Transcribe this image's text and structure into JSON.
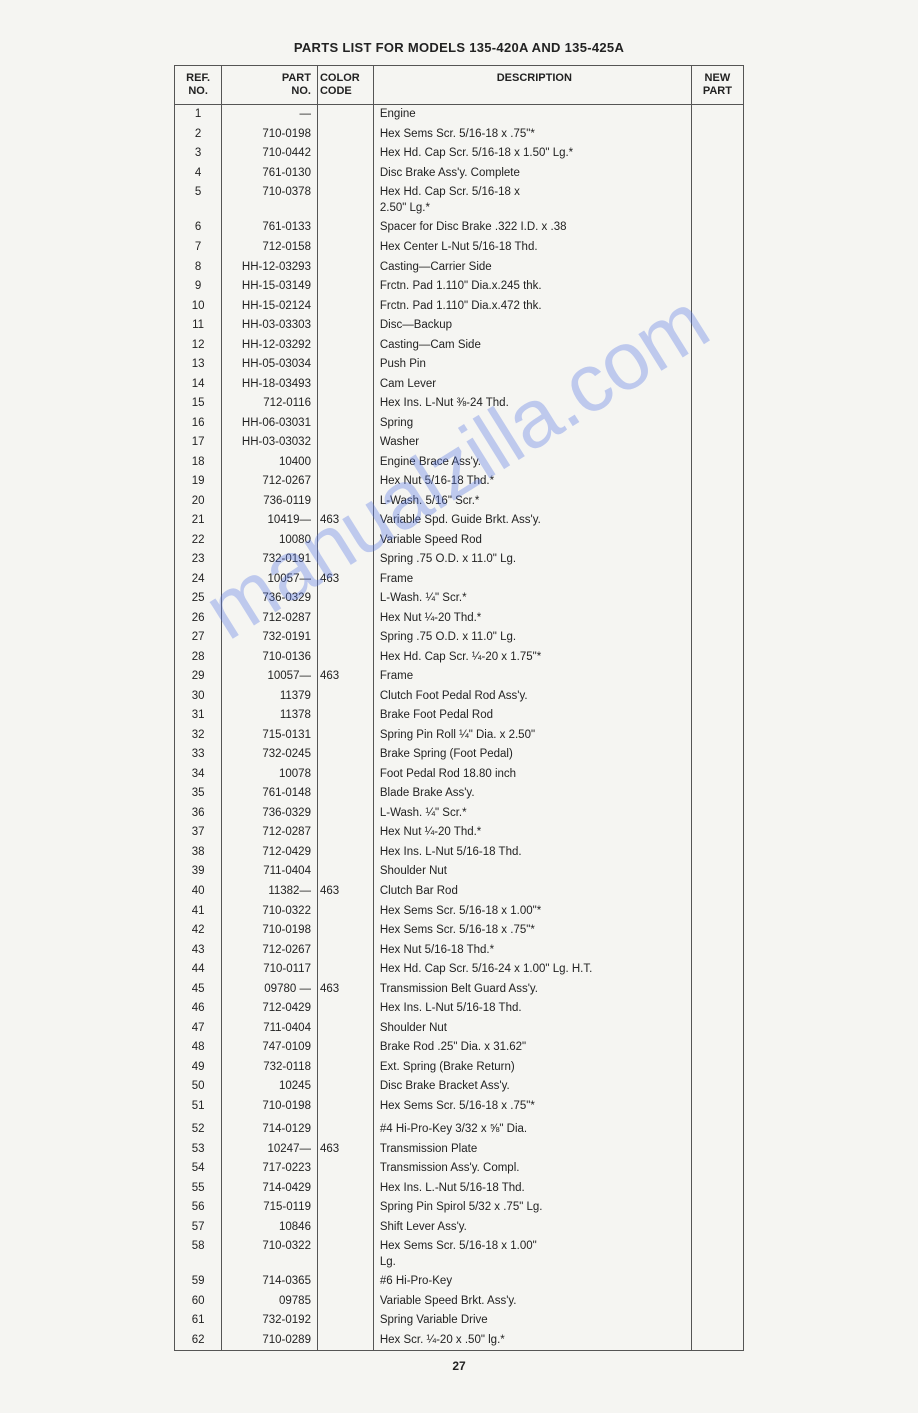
{
  "title": "PARTS LIST FOR MODELS 135-420A AND 135-425A",
  "page_number": "27",
  "watermark": "manualzilla.com",
  "headers": {
    "ref": "REF.\nNO.",
    "part": "PART\nNO.",
    "color": "COLOR\nCODE",
    "desc": "DESCRIPTION",
    "new": "NEW\nPART"
  },
  "rows": [
    {
      "ref": "1",
      "part": "—",
      "color": "",
      "desc": "Engine"
    },
    {
      "ref": "2",
      "part": "710-0198",
      "color": "",
      "desc": "Hex Sems Scr. 5/16-18 x .75\"*"
    },
    {
      "ref": "3",
      "part": "710-0442",
      "color": "",
      "desc": "Hex Hd. Cap Scr. 5/16-18 x 1.50\" Lg.*"
    },
    {
      "ref": "4",
      "part": "761-0130",
      "color": "",
      "desc": "Disc Brake Ass'y. Complete"
    },
    {
      "ref": "5",
      "part": "710-0378",
      "color": "",
      "desc": "Hex Hd. Cap Scr. 5/16-18 x\n    2.50\" Lg.*"
    },
    {
      "ref": "6",
      "part": "761-0133",
      "color": "",
      "desc": "Spacer for Disc Brake .322 I.D. x .38"
    },
    {
      "ref": "7",
      "part": "712-0158",
      "color": "",
      "desc": "Hex Center L-Nut 5/16-18 Thd."
    },
    {
      "ref": "8",
      "part": "HH-12-03293",
      "color": "",
      "desc": "Casting—Carrier Side"
    },
    {
      "ref": "9",
      "part": "HH-15-03149",
      "color": "",
      "desc": "Frctn. Pad 1.110\" Dia.x.245 thk."
    },
    {
      "ref": "10",
      "part": "HH-15-02124",
      "color": "",
      "desc": "Frctn. Pad 1.110\" Dia.x.472 thk."
    },
    {
      "ref": "11",
      "part": "HH-03-03303",
      "color": "",
      "desc": "Disc—Backup"
    },
    {
      "ref": "12",
      "part": "HH-12-03292",
      "color": "",
      "desc": "Casting—Cam Side"
    },
    {
      "ref": "13",
      "part": "HH-05-03034",
      "color": "",
      "desc": "Push Pin"
    },
    {
      "ref": "14",
      "part": "HH-18-03493",
      "color": "",
      "desc": "Cam Lever"
    },
    {
      "ref": "15",
      "part": "712-0116",
      "color": "",
      "desc": "Hex Ins. L-Nut ⅜-24 Thd."
    },
    {
      "ref": "16",
      "part": "HH-06-03031",
      "color": "",
      "desc": "Spring"
    },
    {
      "ref": "17",
      "part": "HH-03-03032",
      "color": "",
      "desc": "Washer"
    },
    {
      "ref": "18",
      "part": "10400",
      "color": "",
      "desc": "Engine Brace Ass'y."
    },
    {
      "ref": "19",
      "part": "712-0267",
      "color": "",
      "desc": "Hex Nut 5/16-18 Thd.*"
    },
    {
      "ref": "20",
      "part": "736-0119",
      "color": "",
      "desc": "L-Wash. 5/16\" Scr.*"
    },
    {
      "ref": "21",
      "part": "10419—",
      "color": "463",
      "desc": "Variable Spd. Guide Brkt. Ass'y."
    },
    {
      "ref": "22",
      "part": "10080",
      "color": "",
      "desc": "Variable Speed Rod"
    },
    {
      "ref": "23",
      "part": "732-0191",
      "color": "",
      "desc": "Spring .75 O.D. x 11.0\" Lg."
    },
    {
      "ref": "24",
      "part": "10057—",
      "color": "463",
      "desc": "Frame"
    },
    {
      "ref": "25",
      "part": "736-0329",
      "color": "",
      "desc": "L-Wash. ¼\" Scr.*"
    },
    {
      "ref": "26",
      "part": "712-0287",
      "color": "",
      "desc": "Hex Nut ¼-20 Thd.*"
    },
    {
      "ref": "27",
      "part": "732-0191",
      "color": "",
      "desc": "Spring .75 O.D. x 11.0\" Lg."
    },
    {
      "ref": "28",
      "part": "710-0136",
      "color": "",
      "desc": "Hex Hd. Cap Scr. ¼-20 x 1.75\"*"
    },
    {
      "ref": "29",
      "part": "10057—",
      "color": "463",
      "desc": "Frame"
    },
    {
      "ref": "30",
      "part": "11379",
      "color": "",
      "desc": "Clutch Foot Pedal Rod Ass'y."
    },
    {
      "ref": "31",
      "part": "11378",
      "color": "",
      "desc": "Brake Foot Pedal Rod"
    },
    {
      "ref": "32",
      "part": "715-0131",
      "color": "",
      "desc": "Spring Pin Roll ¼\" Dia. x 2.50\""
    },
    {
      "ref": "33",
      "part": "732-0245",
      "color": "",
      "desc": "Brake Spring (Foot Pedal)"
    },
    {
      "ref": "34",
      "part": "10078",
      "color": "",
      "desc": "Foot Pedal Rod 18.80 inch"
    },
    {
      "ref": "35",
      "part": "761-0148",
      "color": "",
      "desc": "Blade Brake Ass'y."
    },
    {
      "ref": "36",
      "part": "736-0329",
      "color": "",
      "desc": "L-Wash. ¼\" Scr.*"
    },
    {
      "ref": "37",
      "part": "712-0287",
      "color": "",
      "desc": "Hex Nut ¼-20 Thd.*"
    },
    {
      "ref": "38",
      "part": "712-0429",
      "color": "",
      "desc": "Hex Ins. L-Nut 5/16-18 Thd."
    },
    {
      "ref": "39",
      "part": "711-0404",
      "color": "",
      "desc": "Shoulder Nut"
    },
    {
      "ref": "40",
      "part": "11382—",
      "color": "463",
      "desc": "Clutch Bar Rod"
    },
    {
      "ref": "41",
      "part": "710-0322",
      "color": "",
      "desc": "Hex Sems Scr. 5/16-18 x 1.00\"*"
    },
    {
      "ref": "42",
      "part": "710-0198",
      "color": "",
      "desc": "Hex Sems Scr. 5/16-18 x .75\"*"
    },
    {
      "ref": "43",
      "part": "712-0267",
      "color": "",
      "desc": "Hex Nut 5/16-18 Thd.*"
    },
    {
      "ref": "44",
      "part": "710-0117",
      "color": "",
      "desc": "Hex Hd. Cap Scr. 5/16-24 x 1.00\" Lg. H.T."
    },
    {
      "ref": "45",
      "part": "09780 —",
      "color": "463",
      "desc": "Transmission Belt Guard Ass'y."
    },
    {
      "ref": "46",
      "part": "712-0429",
      "color": "",
      "desc": "Hex Ins. L-Nut 5/16-18 Thd."
    },
    {
      "ref": "47",
      "part": "711-0404",
      "color": "",
      "desc": "Shoulder Nut"
    },
    {
      "ref": "48",
      "part": "747-0109",
      "color": "",
      "desc": "Brake Rod .25\" Dia. x 31.62\""
    },
    {
      "ref": "49",
      "part": "732-0118",
      "color": "",
      "desc": "Ext. Spring (Brake Return)"
    },
    {
      "ref": "50",
      "part": "10245",
      "color": "",
      "desc": "Disc Brake Bracket Ass'y."
    },
    {
      "ref": "51",
      "part": "710-0198",
      "color": "",
      "desc": "Hex Sems Scr. 5/16-18 x .75\"*"
    },
    {
      "ref": "",
      "part": "",
      "color": "",
      "desc": ""
    },
    {
      "ref": "52",
      "part": "714-0129",
      "color": "",
      "desc": "#4 Hi-Pro-Key 3/32 x ⅝\" Dia."
    },
    {
      "ref": "53",
      "part": "10247—",
      "color": "463",
      "desc": "Transmission Plate"
    },
    {
      "ref": "54",
      "part": "717-0223",
      "color": "",
      "desc": "Transmission Ass'y. Compl."
    },
    {
      "ref": "55",
      "part": "714-0429",
      "color": "",
      "desc": "Hex Ins. L.-Nut 5/16-18 Thd."
    },
    {
      "ref": "56",
      "part": "715-0119",
      "color": "",
      "desc": "Spring Pin Spirol 5/32 x .75\" Lg."
    },
    {
      "ref": "57",
      "part": "10846",
      "color": "",
      "desc": "Shift Lever Ass'y."
    },
    {
      "ref": "58",
      "part": "710-0322",
      "color": "",
      "desc": "Hex Sems Scr. 5/16-18 x 1.00\"\n    Lg."
    },
    {
      "ref": "59",
      "part": "714-0365",
      "color": "",
      "desc": "#6 Hi-Pro-Key"
    },
    {
      "ref": "60",
      "part": "09785",
      "color": "",
      "desc": "Variable Speed Brkt. Ass'y."
    },
    {
      "ref": "61",
      "part": "732-0192",
      "color": "",
      "desc": "Spring Variable Drive"
    },
    {
      "ref": "62",
      "part": "710-0289",
      "color": "",
      "desc": "Hex Scr. ¼-20 x .50\" lg.*"
    }
  ]
}
